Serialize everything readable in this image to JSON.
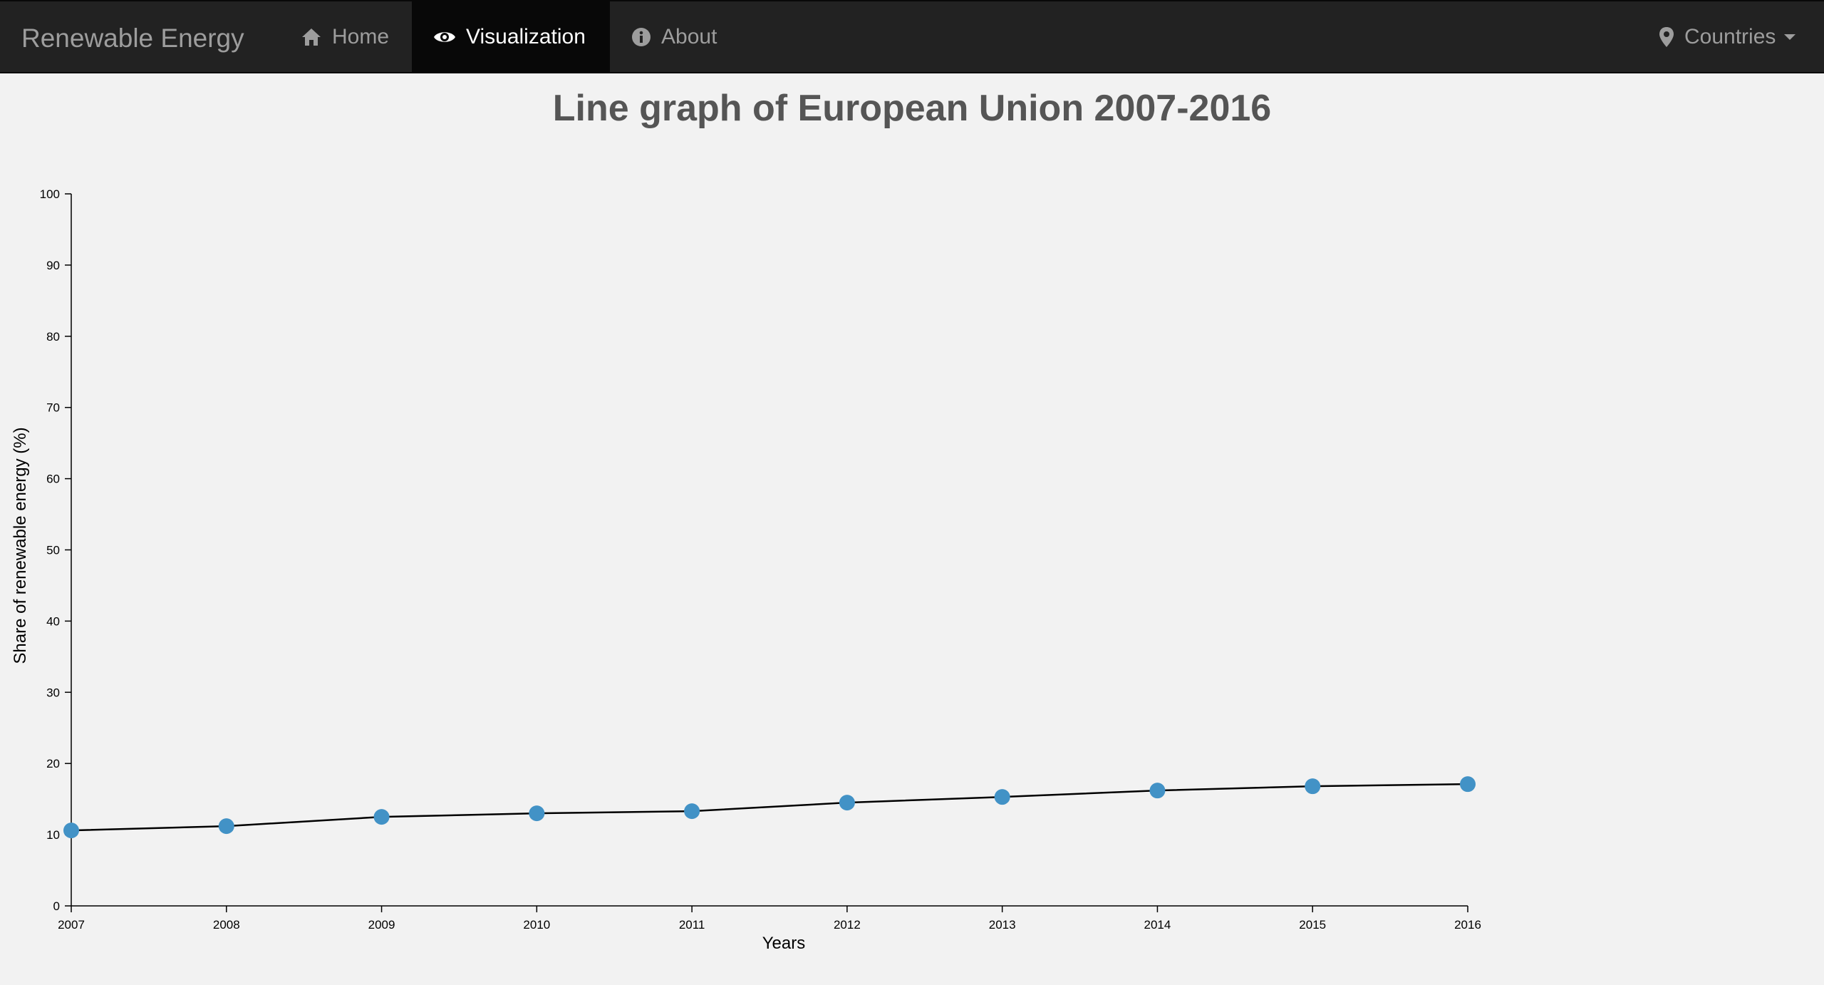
{
  "navbar": {
    "brand": "Renewable Energy",
    "items": [
      {
        "label": "Home",
        "icon": "home-icon"
      },
      {
        "label": "Visualization",
        "icon": "eye-icon",
        "active": true
      },
      {
        "label": "About",
        "icon": "info-icon"
      }
    ],
    "countries_label": "Countries",
    "countries_icon": "map-marker-icon"
  },
  "colors": {
    "navbar_bg": "#222222",
    "active_bg": "#080808",
    "point": "#4292c6",
    "line": "#000000",
    "page_bg": "#f2f2f2"
  },
  "chart_data": {
    "type": "line",
    "title": "Line graph of European Union 2007-2016",
    "xlabel": "Years",
    "ylabel": "Share of renewable energy (%)",
    "x": [
      "2007",
      "2008",
      "2009",
      "2010",
      "2011",
      "2012",
      "2013",
      "2014",
      "2015",
      "2016"
    ],
    "series": [
      {
        "values": [
          10.6,
          11.2,
          12.5,
          13.0,
          13.3,
          14.5,
          15.3,
          16.2,
          16.8,
          17.1
        ]
      }
    ],
    "ylim": [
      0,
      100
    ],
    "yticks": [
      0,
      10,
      20,
      30,
      40,
      50,
      60,
      70,
      80,
      90,
      100
    ],
    "grid": false,
    "markers": true
  }
}
